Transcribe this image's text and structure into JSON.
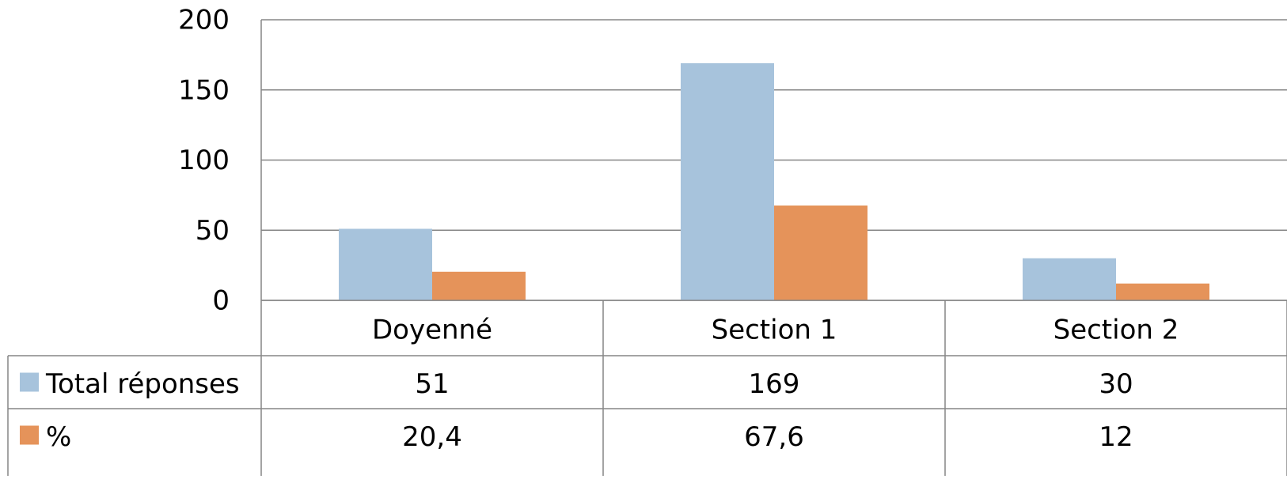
{
  "chart_data": {
    "type": "bar",
    "title": "",
    "xlabel": "",
    "ylabel": "",
    "ylim": [
      0,
      200
    ],
    "yticks": [
      0,
      50,
      100,
      150,
      200
    ],
    "grid": true,
    "legend": "data-table-left",
    "categories": [
      "Doyenné",
      "Section 1",
      "Section 2"
    ],
    "series": [
      {
        "name": "Total réponses",
        "color": "#A7C3DC",
        "values": [
          51,
          169,
          30
        ],
        "display": [
          "51",
          "169",
          "30"
        ]
      },
      {
        "name": "%",
        "color": "#E5935A",
        "values": [
          20.4,
          67.6,
          12
        ],
        "display": [
          "20,4",
          "67,6",
          "12"
        ]
      }
    ]
  }
}
